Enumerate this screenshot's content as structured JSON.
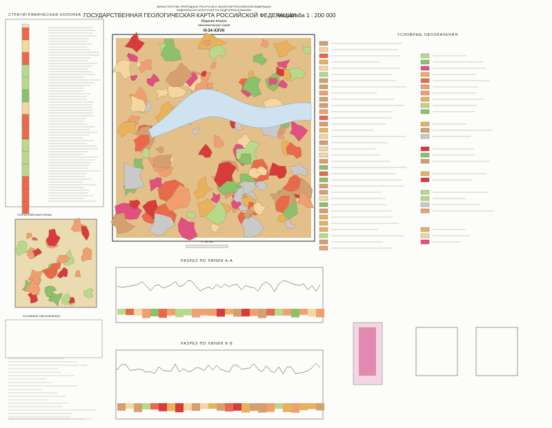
{
  "header": {
    "ministry": "МИНИСТЕРСТВО ПРИРОДНЫХ РЕСУРСОВ И ЭКОЛОГИИ РОССИЙСКОЙ ФЕДЕРАЦИИ",
    "agency": "ФЕДЕРАЛЬНОЕ АГЕНТСТВО ПО НЕДРОПОЛЬЗОВАНИЮ",
    "title": "ГОСУДАРСТВЕННАЯ ГЕОЛОГИЧЕСКАЯ КАРТА РОССИЙСКОЙ ФЕДЕРАЦИИ",
    "scale": "масштаба 1 : 200 000",
    "edition": "Издание второе",
    "series": "Нижневолжская серия",
    "sheet": "N-34-XXVII"
  },
  "strat_column": {
    "title": "СТРАТИГРАФИЧЕСКАЯ КОЛОНКА"
  },
  "scheme": {
    "title": "ГЕОЛОГИЧЕСКАЯ СХЕМА"
  },
  "legend": {
    "title": "УСЛОВНЫЕ ОБОЗНАЧЕНИЯ"
  },
  "left_legend": {
    "title": "УСЛОВНЫЕ ОБОЗНАЧЕНИЯ"
  },
  "map": {
    "scale": "1 : 200 000"
  },
  "sections": [
    {
      "title": "РАЗРЕЗ ПО ЛИНИИ А-А"
    },
    {
      "title": "РАЗРЕЗ ПО ЛИНИИ Б-Б"
    }
  ]
}
